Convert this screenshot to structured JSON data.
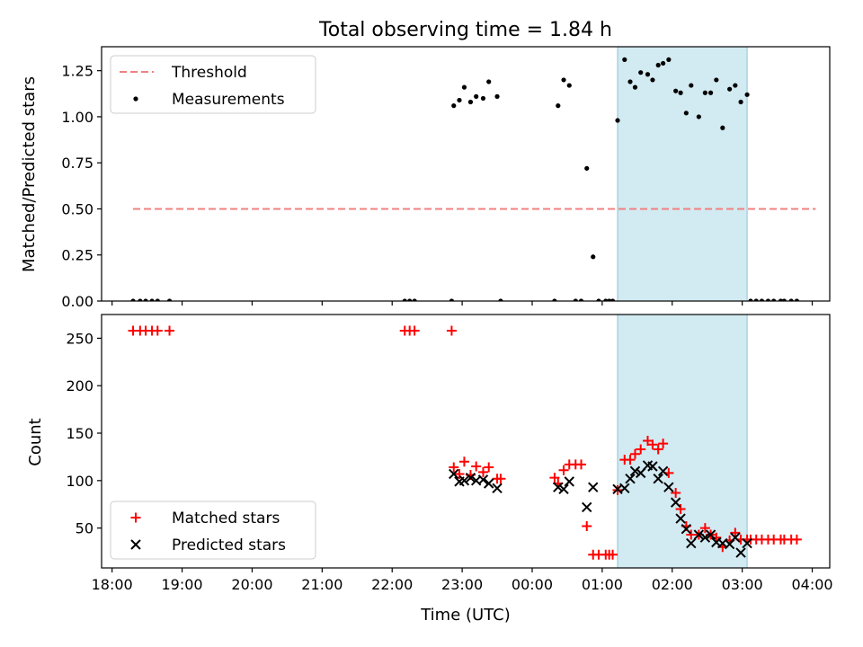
{
  "chart_data": {
    "title": "Total observing time = 1.84 h",
    "xlabel": "Time (UTC)",
    "x_ticks": [
      "18:00",
      "19:00",
      "20:00",
      "21:00",
      "22:00",
      "23:00",
      "00:00",
      "01:00",
      "02:00",
      "03:00",
      "04:00"
    ],
    "x_range_hours": [
      17.85,
      28.25
    ],
    "shaded_span_hours": [
      25.22,
      27.07
    ],
    "colors": {
      "threshold": "#f08080",
      "matched": "#ff0000",
      "predicted": "#000000",
      "span": "#add8e6"
    },
    "panels": [
      {
        "type": "scatter",
        "ylabel": "Matched/Predicted stars",
        "ylim": [
          0,
          1.38
        ],
        "yticks": [
          0.0,
          0.25,
          0.5,
          0.75,
          1.0,
          1.25
        ],
        "ytick_labels": [
          "0.00",
          "0.25",
          "0.50",
          "0.75",
          "1.00",
          "1.25"
        ],
        "legend": [
          "Threshold",
          "Measurements"
        ],
        "legend_loc": "upper-left",
        "threshold": {
          "name": "Threshold",
          "y": 0.5,
          "x": [
            18.3,
            28.05
          ]
        },
        "series": [
          {
            "name": "Measurements",
            "x": [
              18.3,
              18.4,
              18.48,
              18.57,
              18.65,
              18.82,
              22.18,
              22.25,
              22.32,
              22.85,
              22.88,
              22.96,
              23.03,
              23.12,
              23.2,
              23.3,
              23.38,
              23.5,
              23.55,
              24.32,
              24.37,
              24.45,
              24.53,
              24.62,
              24.7,
              24.78,
              24.87,
              24.95,
              25.05,
              25.1,
              25.15,
              25.22,
              25.32,
              25.4,
              25.47,
              25.55,
              25.65,
              25.72,
              25.8,
              25.87,
              25.95,
              26.05,
              26.12,
              26.2,
              26.27,
              26.38,
              26.47,
              26.55,
              26.63,
              26.72,
              26.82,
              26.9,
              26.98,
              27.07,
              27.12,
              27.2,
              27.28,
              27.37,
              27.45,
              27.55,
              27.6,
              27.7,
              27.78
            ],
            "y": [
              0,
              0,
              0,
              0,
              0,
              0,
              0,
              0,
              0,
              0,
              1.06,
              1.09,
              1.16,
              1.08,
              1.11,
              1.1,
              1.19,
              1.11,
              0,
              0,
              1.06,
              1.2,
              1.17,
              0,
              0,
              0.72,
              0.24,
              0,
              0,
              0,
              0,
              0.98,
              1.31,
              1.19,
              1.16,
              1.24,
              1.23,
              1.2,
              1.28,
              1.29,
              1.31,
              1.14,
              1.13,
              1.02,
              1.17,
              1.0,
              1.13,
              1.13,
              1.2,
              0.94,
              1.15,
              1.17,
              1.08,
              1.12,
              0,
              0,
              0,
              0,
              0,
              0,
              0,
              0,
              0
            ]
          }
        ]
      },
      {
        "type": "scatter",
        "ylabel": "Count",
        "ylim": [
          8,
          275
        ],
        "yticks": [
          50,
          100,
          150,
          200,
          250
        ],
        "ytick_labels": [
          "50",
          "100",
          "150",
          "200",
          "250"
        ],
        "legend": [
          "Matched stars",
          "Predicted stars"
        ],
        "legend_loc": "lower-left",
        "series": [
          {
            "name": "Matched stars",
            "marker": "plus",
            "x": [
              18.3,
              18.4,
              18.48,
              18.57,
              18.65,
              18.82,
              22.18,
              22.25,
              22.32,
              22.85,
              22.88,
              22.96,
              23.03,
              23.12,
              23.2,
              23.3,
              23.38,
              23.5,
              23.55,
              24.32,
              24.37,
              24.45,
              24.53,
              24.62,
              24.7,
              24.78,
              24.87,
              24.95,
              25.05,
              25.1,
              25.15,
              25.22,
              25.32,
              25.4,
              25.47,
              25.55,
              25.65,
              25.72,
              25.8,
              25.87,
              25.95,
              26.05,
              26.12,
              26.2,
              26.27,
              26.38,
              26.47,
              26.55,
              26.63,
              26.72,
              26.82,
              26.9,
              26.98,
              27.07,
              27.12,
              27.2,
              27.28,
              27.37,
              27.45,
              27.55,
              27.6,
              27.7,
              27.78
            ],
            "y": [
              258,
              258,
              258,
              258,
              258,
              258,
              258,
              258,
              258,
              258,
              114,
              107,
              120,
              106,
              115,
              109,
              114,
              102,
              102,
              103,
              97,
              111,
              117,
              117,
              117,
              52,
              22,
              22,
              22,
              22,
              22,
              90,
              122,
              122,
              128,
              133,
              142,
              138,
              133,
              139,
              108,
              87,
              70,
              52,
              43,
              43,
              50,
              43,
              40,
              30,
              37,
              45,
              38,
              38,
              38,
              38,
              38,
              38,
              38,
              38,
              38,
              38,
              38
            ]
          },
          {
            "name": "Predicted stars",
            "marker": "x",
            "x": [
              22.88,
              22.96,
              23.03,
              23.12,
              23.2,
              23.3,
              23.38,
              23.5,
              24.37,
              24.45,
              24.53,
              24.78,
              24.87,
              25.22,
              25.32,
              25.4,
              25.47,
              25.55,
              25.65,
              25.72,
              25.8,
              25.87,
              25.95,
              26.05,
              26.12,
              26.2,
              26.27,
              26.38,
              26.47,
              26.55,
              26.63,
              26.72,
              26.82,
              26.9,
              26.98,
              27.07
            ],
            "y": [
              107,
              99,
              100,
              103,
              100,
              101,
              97,
              92,
              93,
              91,
              99,
              72,
              93,
              91,
              92,
              102,
              110,
              108,
              116,
              115,
              102,
              110,
              93,
              77,
              60,
              49,
              34,
              43,
              40,
              43,
              35,
              34,
              33,
              40,
              24,
              34
            ]
          }
        ]
      }
    ]
  }
}
